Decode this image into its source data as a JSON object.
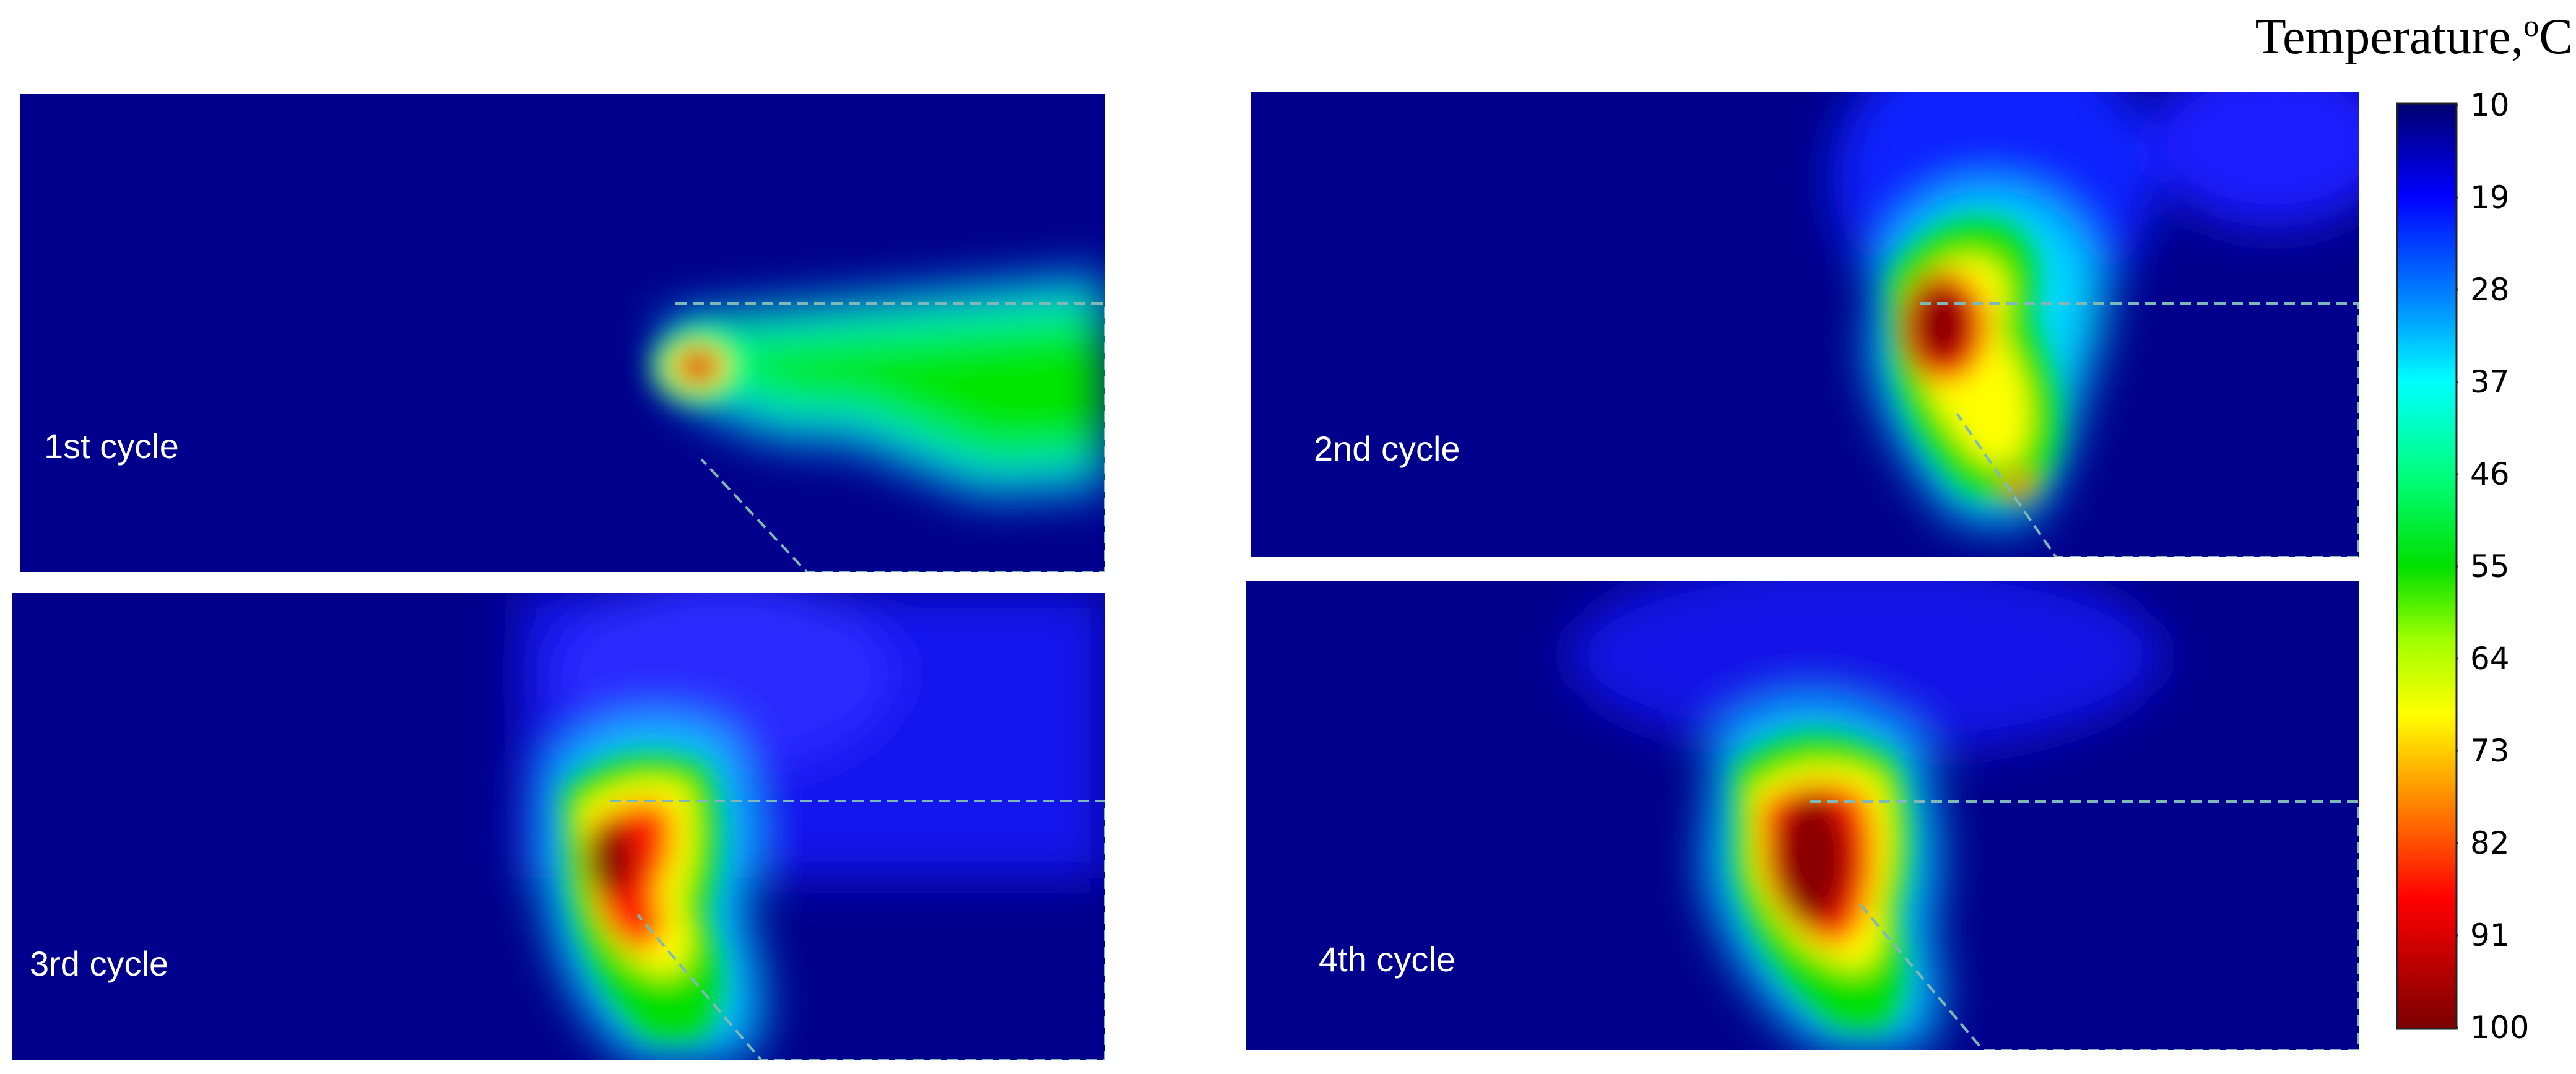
{
  "colorbar": {
    "title_prefix": "Temperature,",
    "title_sup": "o",
    "title_suffix": "C",
    "ticks": [
      "10",
      "19",
      "28",
      "37",
      "46",
      "55",
      "64",
      "73",
      "82",
      "91",
      "100"
    ],
    "colors": [
      "#00007a",
      "#0000ff",
      "#00aaff",
      "#00ffff",
      "#00ff80",
      "#00e000",
      "#c0ff00",
      "#ffff00",
      "#ff8000",
      "#ff0000",
      "#800000"
    ]
  },
  "panels": [
    {
      "label": "1st cycle"
    },
    {
      "label": "2nd cycle"
    },
    {
      "label": "3rd cycle"
    },
    {
      "label": "4th cycle"
    }
  ]
}
